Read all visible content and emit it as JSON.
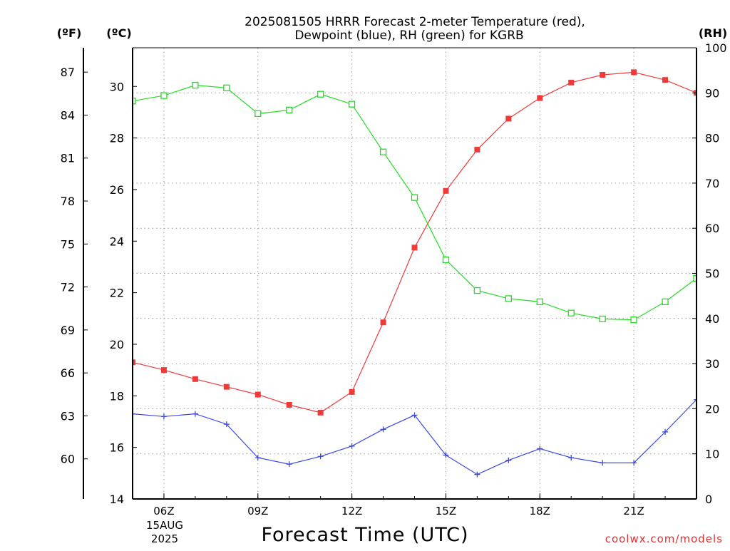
{
  "chart_data": {
    "type": "line",
    "title_line1": "2025081505 HRRR Forecast 2-meter Temperature (red),",
    "title_line2": "Dewpoint (blue), RH (green) for KGRB",
    "xlabel": "Forecast Time (UTC)",
    "credit": "coolwx.com/models",
    "axes": {
      "f_label": "(ºF)",
      "c_label": "(ºC)",
      "rh_label": "(RH)",
      "c_ylim": [
        14,
        31.5
      ],
      "rh_ylim": [
        0,
        100
      ],
      "x_range_hours": [
        5,
        23
      ],
      "c_ticks": [
        {
          "value": 14,
          "label": "14"
        },
        {
          "value": 16,
          "label": "16"
        },
        {
          "value": 18,
          "label": "18"
        },
        {
          "value": 20,
          "label": "20"
        },
        {
          "value": 22,
          "label": "22"
        },
        {
          "value": 24,
          "label": "24"
        },
        {
          "value": 26,
          "label": "26"
        },
        {
          "value": 28,
          "label": "28"
        },
        {
          "value": 30,
          "label": "30"
        }
      ],
      "f_ticks": [
        {
          "value": 60,
          "label": "60"
        },
        {
          "value": 63,
          "label": "63"
        },
        {
          "value": 66,
          "label": "66"
        },
        {
          "value": 69,
          "label": "69"
        },
        {
          "value": 72,
          "label": "72"
        },
        {
          "value": 75,
          "label": "75"
        },
        {
          "value": 78,
          "label": "78"
        },
        {
          "value": 81,
          "label": "81"
        },
        {
          "value": 84,
          "label": "84"
        },
        {
          "value": 87,
          "label": "87"
        }
      ],
      "rh_ticks": [
        {
          "value": 0,
          "label": "0"
        },
        {
          "value": 10,
          "label": "10"
        },
        {
          "value": 20,
          "label": "20"
        },
        {
          "value": 30,
          "label": "30"
        },
        {
          "value": 40,
          "label": "40"
        },
        {
          "value": 50,
          "label": "50"
        },
        {
          "value": 60,
          "label": "60"
        },
        {
          "value": 70,
          "label": "70"
        },
        {
          "value": 80,
          "label": "80"
        },
        {
          "value": 90,
          "label": "90"
        },
        {
          "value": 100,
          "label": "100"
        }
      ],
      "x_ticks": [
        {
          "hour": 6,
          "label": "06Z"
        },
        {
          "hour": 9,
          "label": "09Z"
        },
        {
          "hour": 12,
          "label": "12Z"
        },
        {
          "hour": 15,
          "label": "15Z"
        },
        {
          "hour": 18,
          "label": "18Z"
        },
        {
          "hour": 21,
          "label": "21Z"
        }
      ],
      "date_line1": "15AUG",
      "date_line2": "2025",
      "grid": true
    },
    "x_hours": [
      5,
      6,
      7,
      8,
      9,
      10,
      11,
      12,
      13,
      14,
      15,
      16,
      17,
      18,
      19,
      20,
      21,
      22,
      23
    ],
    "series": [
      {
        "key": "temperature",
        "axis": "C",
        "color": "#ef3a3a",
        "marker": "filled-square",
        "values": [
          19.3,
          19.0,
          18.65,
          18.35,
          18.05,
          17.65,
          17.35,
          18.15,
          20.85,
          23.75,
          25.95,
          27.55,
          28.75,
          29.55,
          30.15,
          30.45,
          30.55,
          30.25,
          29.75
        ]
      },
      {
        "key": "dewpoint",
        "axis": "C",
        "color": "#3a48e6",
        "marker": "plus",
        "values": [
          17.3,
          17.2,
          17.3,
          16.9,
          15.6,
          15.35,
          15.65,
          16.05,
          16.7,
          17.25,
          15.7,
          14.95,
          15.5,
          15.95,
          15.6,
          15.4,
          15.4,
          16.6,
          17.85
        ]
      },
      {
        "key": "rh",
        "axis": "RH",
        "color": "#22dd22",
        "marker": "open-square",
        "values": [
          88.2,
          89.4,
          91.7,
          91.1,
          85.4,
          86.2,
          89.7,
          87.5,
          76.9,
          66.8,
          53.0,
          46.2,
          44.4,
          43.7,
          41.2,
          39.9,
          39.7,
          43.7,
          48.9
        ]
      }
    ]
  }
}
